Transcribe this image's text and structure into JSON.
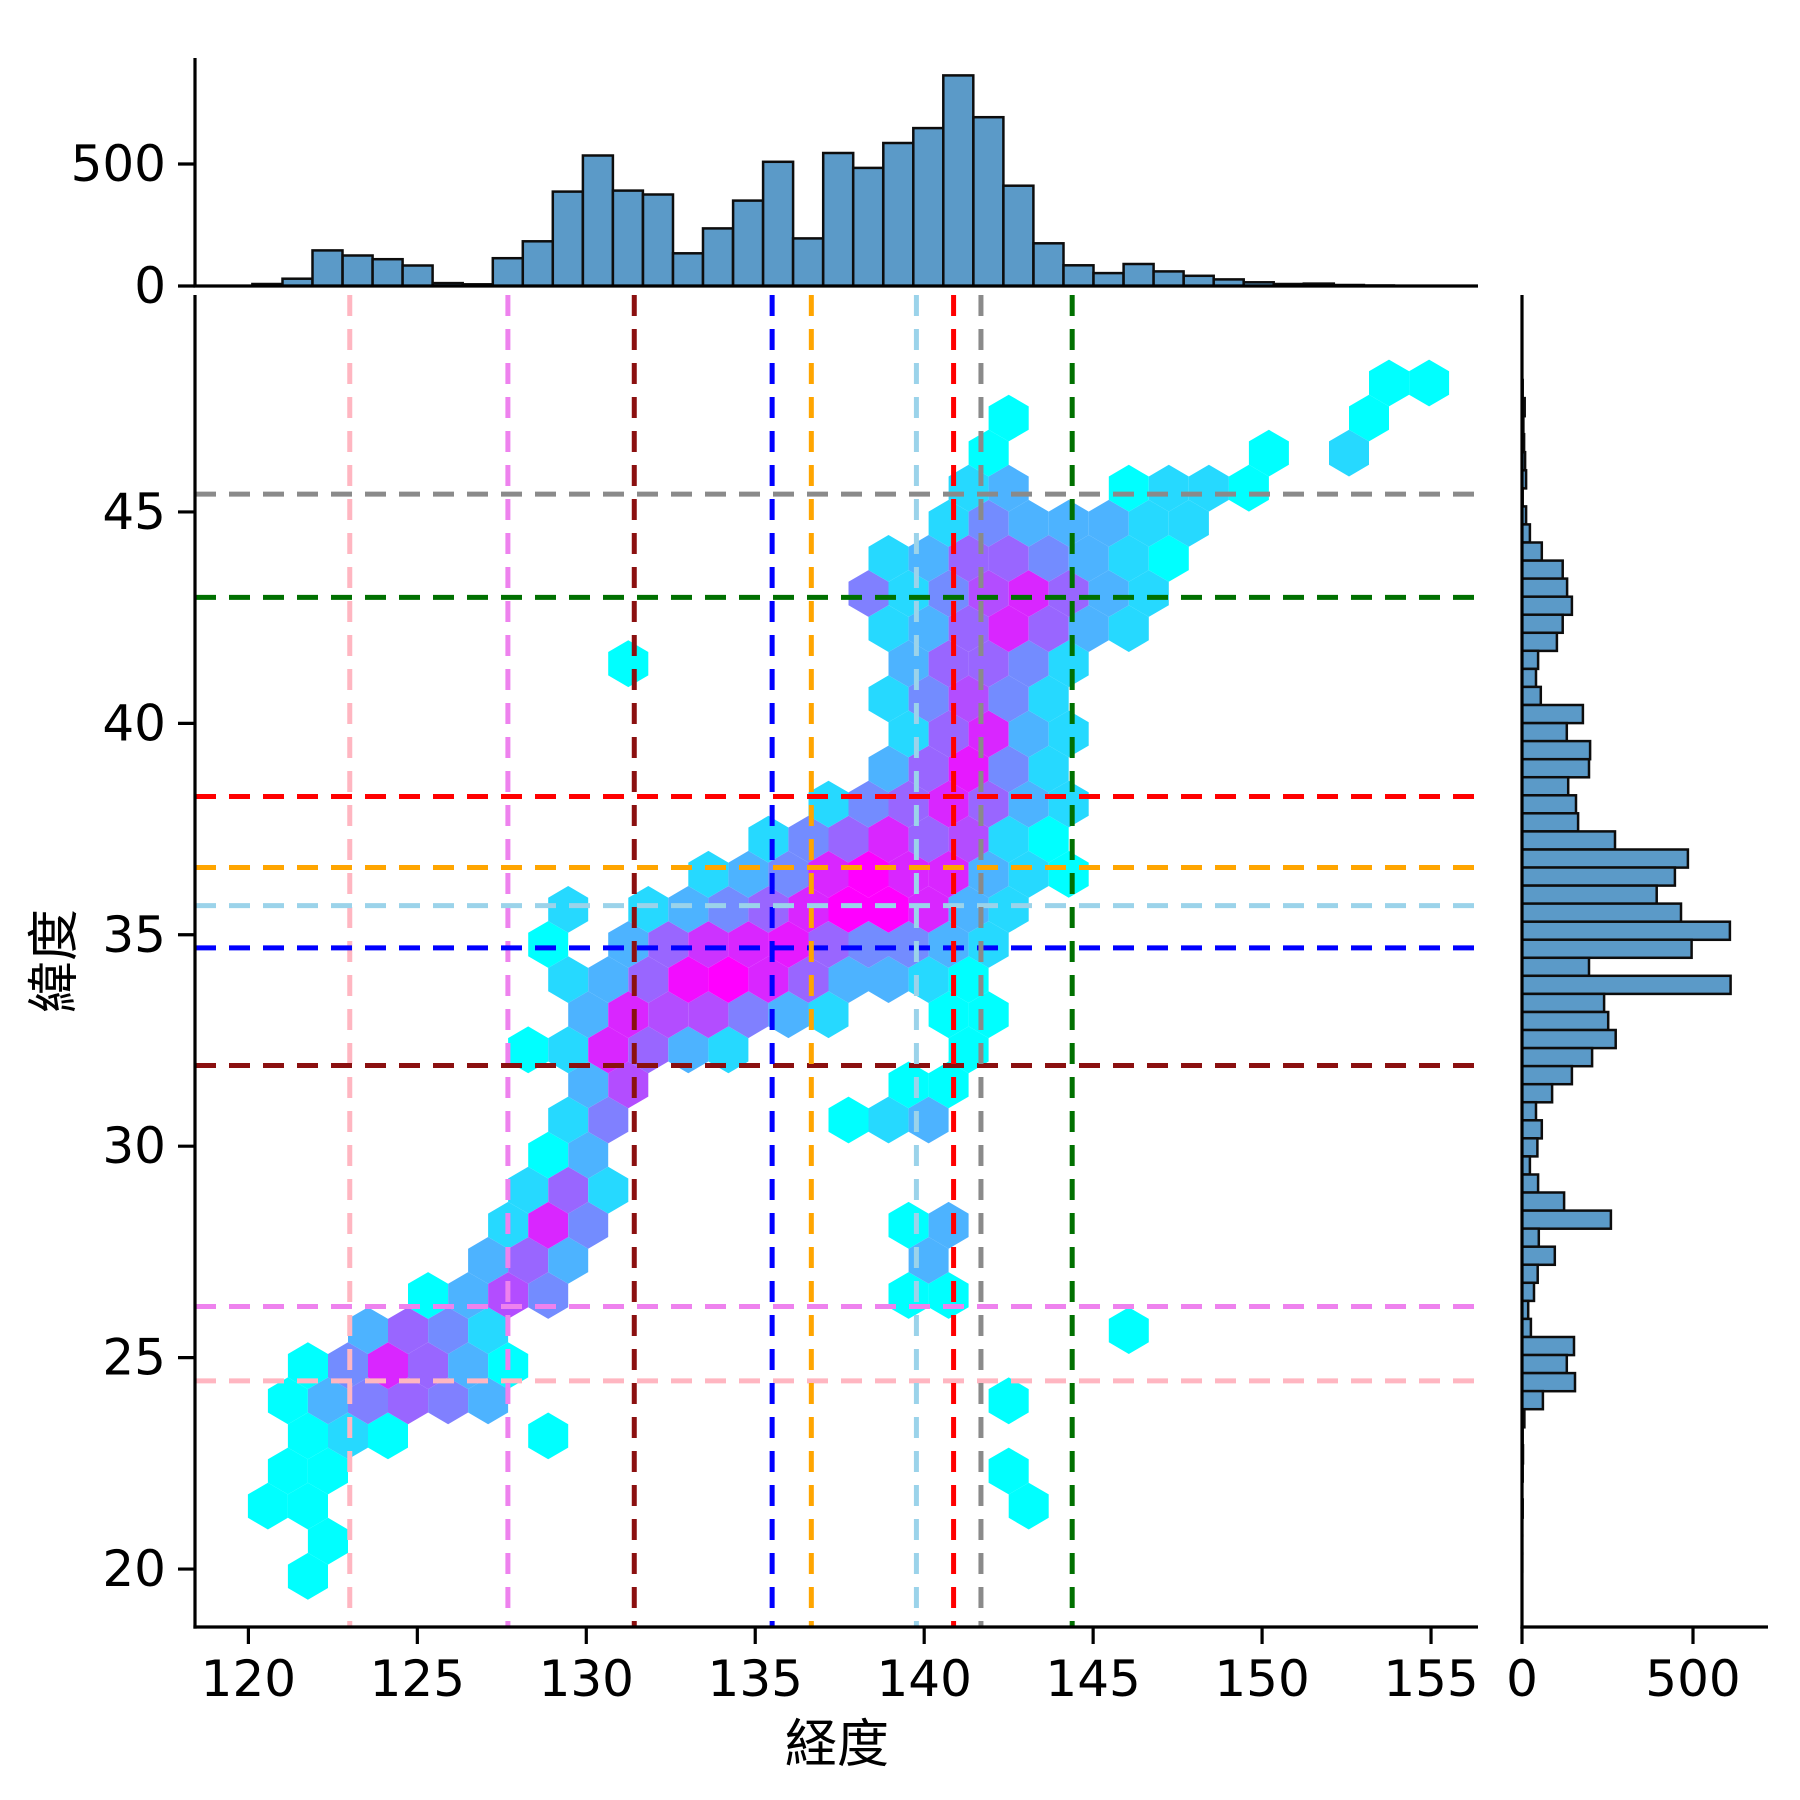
{
  "figure": {
    "xlabel": "経度",
    "ylabel": "緯度",
    "background": "#ffffff"
  },
  "axes": {
    "main": {
      "xlim": [
        118.42,
        156.39
      ],
      "ylim": [
        18.63,
        50.13
      ],
      "xticks": [
        120,
        125,
        130,
        135,
        140,
        145,
        150,
        155
      ],
      "yticks": [
        20,
        25,
        30,
        35,
        40,
        45
      ]
    },
    "top_marginal": {
      "ylim": [
        0,
        930
      ],
      "yticks": [
        0,
        500
      ]
    },
    "right_marginal": {
      "xlim": [
        0,
        700
      ],
      "xticks": [
        0,
        500
      ]
    }
  },
  "colors": {
    "bar_fill": "#5b9ac8",
    "bar_edge": "#0d0d0d",
    "spine": "#000000",
    "colormap": "cool",
    "colormap_low": "#00ffff",
    "colormap_high": "#ff00ff"
  },
  "reference_lines": [
    {
      "name": "pink-dashed",
      "color": "#ffb6c1",
      "lon": 123.0,
      "lat": 24.45
    },
    {
      "name": "violet-dashed",
      "color": "#ee82ee",
      "lon": 127.68,
      "lat": 26.21
    },
    {
      "name": "darkred-dashed",
      "color": "#8b1010",
      "lon": 131.42,
      "lat": 31.91
    },
    {
      "name": "blue-dashed",
      "color": "#0000ff",
      "lon": 135.5,
      "lat": 34.69
    },
    {
      "name": "orange-dashed",
      "color": "#ffa500",
      "lon": 136.66,
      "lat": 36.59
    },
    {
      "name": "lightblue-dashed",
      "color": "#9bd3ea",
      "lon": 139.77,
      "lat": 35.69
    },
    {
      "name": "red-dashed",
      "color": "#ff0000",
      "lon": 140.87,
      "lat": 38.27
    },
    {
      "name": "gray-dashed",
      "color": "#8a8a8a",
      "lon": 141.68,
      "lat": 45.42
    },
    {
      "name": "green-dashed",
      "color": "#007000",
      "lon": 144.38,
      "lat": 42.98
    }
  ],
  "chart_data": [
    {
      "type": "heatmap",
      "name": "hexbin-longitude-latitude",
      "note": "hex cells encoded as [col,row,intensity]; lon=118.8+1.185*col+(row odd ? 0.5925:0); lat=19.0+0.83*row; intensity 0..1 mapped on cool colormap (cyan->magenta)",
      "hex_dx": 1.185,
      "hex_dy": 0.83,
      "lon0": 118.8,
      "lat0": 19.0,
      "cells": [
        [
          2,
          1,
          0
        ],
        [
          3,
          2,
          0
        ],
        [
          1,
          3,
          0
        ],
        [
          2,
          3,
          0
        ],
        [
          20,
          3,
          0
        ],
        [
          2,
          4,
          0
        ],
        [
          3,
          4,
          0
        ],
        [
          20,
          4,
          0
        ],
        [
          2,
          5,
          0
        ],
        [
          3,
          5,
          0.15
        ],
        [
          4,
          5,
          0
        ],
        [
          8,
          5,
          0
        ],
        [
          2,
          6,
          0
        ],
        [
          3,
          6,
          0.3
        ],
        [
          4,
          6,
          0.5
        ],
        [
          5,
          6,
          0.6
        ],
        [
          6,
          6,
          0.5
        ],
        [
          7,
          6,
          0.3
        ],
        [
          20,
          6,
          0
        ],
        [
          2,
          7,
          0
        ],
        [
          3,
          7,
          0.45
        ],
        [
          4,
          7,
          0.85
        ],
        [
          5,
          7,
          0.6
        ],
        [
          6,
          7,
          0.3
        ],
        [
          7,
          7,
          0
        ],
        [
          4,
          8,
          0.3
        ],
        [
          5,
          8,
          0.6
        ],
        [
          6,
          8,
          0.45
        ],
        [
          7,
          8,
          0.15
        ],
        [
          23,
          8,
          0
        ],
        [
          5,
          9,
          0
        ],
        [
          6,
          9,
          0.3
        ],
        [
          7,
          9,
          0.7
        ],
        [
          8,
          9,
          0.45
        ],
        [
          17,
          9,
          0
        ],
        [
          18,
          9,
          0
        ],
        [
          7,
          10,
          0.3
        ],
        [
          8,
          10,
          0.6
        ],
        [
          9,
          10,
          0.3
        ],
        [
          18,
          10,
          0.3
        ],
        [
          7,
          11,
          0.15
        ],
        [
          8,
          11,
          0.85
        ],
        [
          9,
          11,
          0.45
        ],
        [
          17,
          11,
          0
        ],
        [
          18,
          11,
          0.3
        ],
        [
          8,
          12,
          0.15
        ],
        [
          9,
          12,
          0.6
        ],
        [
          10,
          12,
          0.15
        ],
        [
          8,
          13,
          0
        ],
        [
          9,
          13,
          0.3
        ],
        [
          9,
          14,
          0.15
        ],
        [
          10,
          14,
          0.5
        ],
        [
          16,
          14,
          0
        ],
        [
          17,
          14,
          0.15
        ],
        [
          18,
          14,
          0.3
        ],
        [
          9,
          15,
          0.3
        ],
        [
          10,
          15,
          0.7
        ],
        [
          17,
          15,
          0
        ],
        [
          18,
          15,
          0
        ],
        [
          8,
          16,
          0
        ],
        [
          9,
          16,
          0.15
        ],
        [
          10,
          16,
          0.85
        ],
        [
          11,
          16,
          0.6
        ],
        [
          12,
          16,
          0.3
        ],
        [
          13,
          16,
          0.15
        ],
        [
          19,
          16,
          0
        ],
        [
          9,
          17,
          0.3
        ],
        [
          10,
          17,
          0.85
        ],
        [
          11,
          17,
          0.7
        ],
        [
          12,
          17,
          0.7
        ],
        [
          13,
          17,
          0.5
        ],
        [
          14,
          17,
          0.3
        ],
        [
          15,
          17,
          0.15
        ],
        [
          18,
          17,
          0
        ],
        [
          19,
          17,
          0
        ],
        [
          9,
          18,
          0.15
        ],
        [
          10,
          18,
          0.3
        ],
        [
          11,
          18,
          0.6
        ],
        [
          12,
          18,
          0.95
        ],
        [
          13,
          18,
          1.0
        ],
        [
          14,
          18,
          0.85
        ],
        [
          15,
          18,
          0.6
        ],
        [
          16,
          18,
          0.3
        ],
        [
          17,
          18,
          0.3
        ],
        [
          18,
          18,
          0.15
        ],
        [
          19,
          18,
          0
        ],
        [
          8,
          19,
          0
        ],
        [
          10,
          19,
          0.3
        ],
        [
          11,
          19,
          0.6
        ],
        [
          12,
          19,
          0.8
        ],
        [
          13,
          19,
          0.85
        ],
        [
          14,
          19,
          0.9
        ],
        [
          15,
          19,
          0.6
        ],
        [
          16,
          19,
          0.45
        ],
        [
          17,
          19,
          0.45
        ],
        [
          18,
          19,
          0.3
        ],
        [
          19,
          19,
          0.15
        ],
        [
          9,
          20,
          0.15
        ],
        [
          11,
          20,
          0.15
        ],
        [
          12,
          20,
          0.3
        ],
        [
          13,
          20,
          0.45
        ],
        [
          14,
          20,
          0.6
        ],
        [
          15,
          20,
          0.85
        ],
        [
          16,
          20,
          1.0
        ],
        [
          17,
          20,
          1.0
        ],
        [
          18,
          20,
          0.85
        ],
        [
          19,
          20,
          0.3
        ],
        [
          20,
          20,
          0.15
        ],
        [
          12,
          21,
          0.15
        ],
        [
          13,
          21,
          0.3
        ],
        [
          14,
          21,
          0.45
        ],
        [
          15,
          21,
          0.85
        ],
        [
          16,
          21,
          1.0
        ],
        [
          17,
          21,
          0.85
        ],
        [
          18,
          21,
          0.85
        ],
        [
          19,
          21,
          0.3
        ],
        [
          20,
          21,
          0.15
        ],
        [
          21,
          21,
          0
        ],
        [
          14,
          22,
          0.15
        ],
        [
          15,
          22,
          0.45
        ],
        [
          16,
          22,
          0.6
        ],
        [
          17,
          22,
          0.85
        ],
        [
          18,
          22,
          0.6
        ],
        [
          19,
          22,
          0.7
        ],
        [
          20,
          22,
          0.15
        ],
        [
          21,
          22,
          0
        ],
        [
          15,
          23,
          0.15
        ],
        [
          16,
          23,
          0.45
        ],
        [
          17,
          23,
          0.6
        ],
        [
          18,
          23,
          0.85
        ],
        [
          19,
          23,
          0.6
        ],
        [
          20,
          23,
          0.3
        ],
        [
          21,
          23,
          0.15
        ],
        [
          17,
          24,
          0.3
        ],
        [
          18,
          24,
          0.6
        ],
        [
          19,
          24,
          0.9
        ],
        [
          20,
          24,
          0.45
        ],
        [
          21,
          24,
          0.15
        ],
        [
          17,
          25,
          0.15
        ],
        [
          18,
          25,
          0.6
        ],
        [
          19,
          25,
          0.85
        ],
        [
          20,
          25,
          0.3
        ],
        [
          21,
          25,
          0.15
        ],
        [
          17,
          26,
          0.15
        ],
        [
          18,
          26,
          0.45
        ],
        [
          19,
          26,
          0.7
        ],
        [
          20,
          26,
          0.45
        ],
        [
          21,
          26,
          0.15
        ],
        [
          10,
          27,
          0
        ],
        [
          17,
          27,
          0.3
        ],
        [
          18,
          27,
          0.6
        ],
        [
          19,
          27,
          0.6
        ],
        [
          20,
          27,
          0.45
        ],
        [
          21,
          27,
          0.15
        ],
        [
          17,
          28,
          0.15
        ],
        [
          18,
          28,
          0.3
        ],
        [
          19,
          28,
          0.6
        ],
        [
          20,
          28,
          0.85
        ],
        [
          21,
          28,
          0.6
        ],
        [
          22,
          28,
          0.3
        ],
        [
          23,
          28,
          0.15
        ],
        [
          16,
          29,
          0.5
        ],
        [
          17,
          29,
          0.15
        ],
        [
          18,
          29,
          0.45
        ],
        [
          19,
          29,
          0.7
        ],
        [
          20,
          29,
          0.85
        ],
        [
          21,
          29,
          0.6
        ],
        [
          22,
          29,
          0.3
        ],
        [
          23,
          29,
          0.15
        ],
        [
          17,
          30,
          0.15
        ],
        [
          18,
          30,
          0.3
        ],
        [
          19,
          30,
          0.6
        ],
        [
          20,
          30,
          0.6
        ],
        [
          21,
          30,
          0.45
        ],
        [
          22,
          30,
          0.3
        ],
        [
          23,
          30,
          0.15
        ],
        [
          24,
          30,
          0
        ],
        [
          18,
          31,
          0.15
        ],
        [
          19,
          31,
          0.45
        ],
        [
          20,
          31,
          0.3
        ],
        [
          21,
          31,
          0.3
        ],
        [
          22,
          31,
          0.3
        ],
        [
          23,
          31,
          0.15
        ],
        [
          24,
          31,
          0.15
        ],
        [
          19,
          32,
          0.15
        ],
        [
          20,
          32,
          0.3
        ],
        [
          23,
          32,
          0
        ],
        [
          24,
          32,
          0.15
        ],
        [
          25,
          32,
          0.15
        ],
        [
          26,
          32,
          0
        ],
        [
          19,
          33,
          0
        ],
        [
          26,
          33,
          0
        ],
        [
          28,
          33,
          0.15
        ],
        [
          20,
          34,
          0
        ],
        [
          29,
          34,
          0
        ],
        [
          29,
          35,
          0
        ],
        [
          30,
          35,
          0
        ]
      ]
    },
    {
      "type": "bar",
      "name": "top-histogram-longitude",
      "bin_start": 120.12,
      "bin_width": 0.889,
      "values": [
        8,
        30,
        146,
        125,
        110,
        84,
        12,
        7,
        114,
        183,
        387,
        535,
        391,
        375,
        134,
        236,
        350,
        509,
        195,
        545,
        484,
        586,
        647,
        863,
        692,
        411,
        175,
        85,
        53,
        90,
        60,
        42,
        27,
        15,
        8,
        10,
        4,
        2
      ],
      "ylabel_ticks": [
        0,
        500
      ]
    },
    {
      "type": "bar",
      "name": "right-histogram-latitude",
      "bin_start_lat": 48.12,
      "bin_step": -0.427,
      "values": [
        2,
        8,
        4,
        6,
        9,
        12,
        2,
        12,
        23,
        58,
        119,
        132,
        146,
        119,
        102,
        47,
        41,
        55,
        178,
        131,
        199,
        196,
        135,
        158,
        164,
        272,
        485,
        447,
        394,
        465,
        608,
        496,
        196,
        610,
        240,
        252,
        274,
        205,
        146,
        88,
        41,
        58,
        45,
        23,
        47,
        123,
        260,
        49,
        96,
        46,
        35,
        18,
        26,
        152,
        131,
        155,
        61,
        7,
        2,
        3,
        2,
        1,
        2,
        1,
        1,
        1
      ],
      "xlabel_ticks": [
        0,
        500
      ]
    }
  ]
}
